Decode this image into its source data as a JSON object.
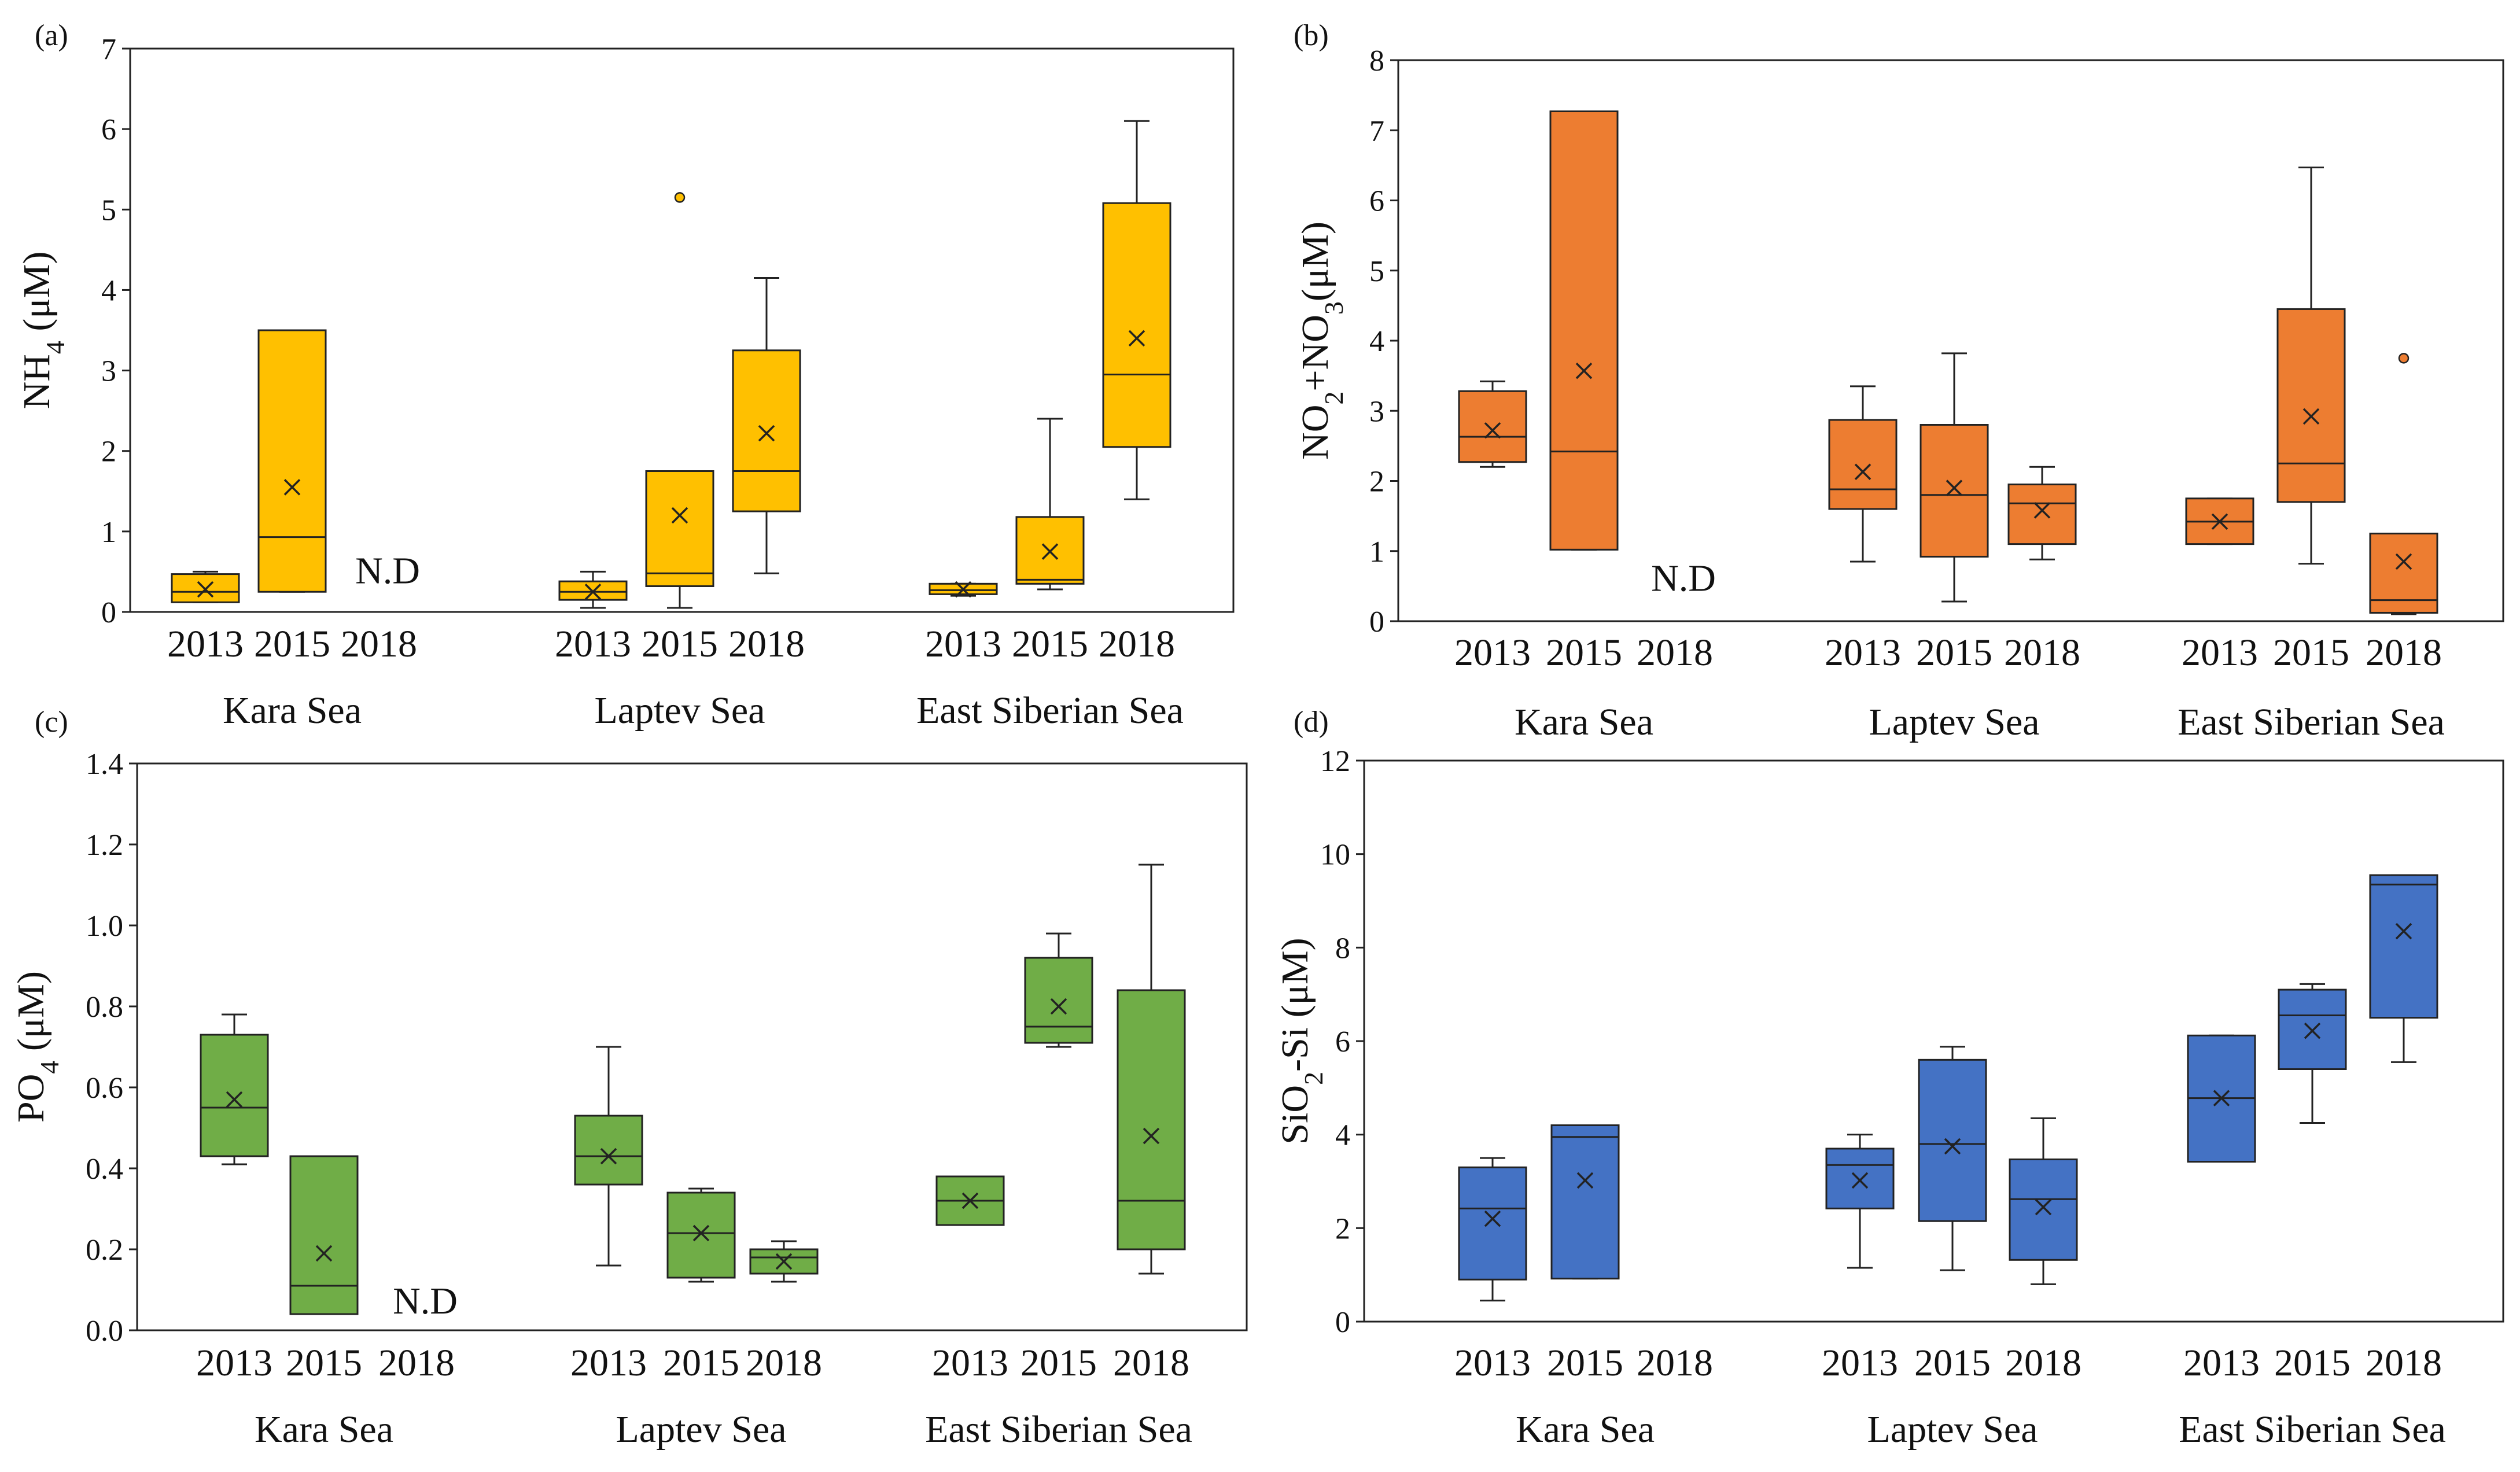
{
  "chart_data": [
    {
      "panel": "(a)",
      "type": "box",
      "ylabel": "NH₄ (μM)",
      "ylabel_main": "NH",
      "ylabel_sub": "4",
      "ylabel_rest": " (μM)",
      "ylim": [
        0,
        7
      ],
      "yticks": [
        "0",
        "1",
        "2",
        "3",
        "4",
        "5",
        "6",
        "7"
      ],
      "color": "#FFC000",
      "outlier_color": "#FFC000",
      "groups": [
        "Kara Sea",
        "Laptev Sea",
        "East Siberian Sea"
      ],
      "years": [
        "2013",
        "2015",
        "2018"
      ],
      "boxes": [
        {
          "group": 0,
          "year": 0,
          "min": 0.12,
          "q1": 0.12,
          "median": 0.25,
          "q3": 0.47,
          "max": 0.5,
          "mean": 0.28
        },
        {
          "group": 0,
          "year": 1,
          "min": 0.25,
          "q1": 0.25,
          "median": 0.93,
          "q3": 3.5,
          "max": 3.5,
          "mean": 1.55
        },
        {
          "group": 1,
          "year": 0,
          "min": 0.05,
          "q1": 0.15,
          "median": 0.25,
          "q3": 0.38,
          "max": 0.5,
          "mean": 0.25
        },
        {
          "group": 1,
          "year": 1,
          "min": 0.05,
          "q1": 0.32,
          "median": 0.48,
          "q3": 1.75,
          "max": 1.75,
          "mean": 1.2,
          "outliers": [
            5.15
          ]
        },
        {
          "group": 1,
          "year": 2,
          "min": 0.48,
          "q1": 1.25,
          "median": 1.75,
          "q3": 3.25,
          "max": 4.15,
          "mean": 2.22
        },
        {
          "group": 2,
          "year": 0,
          "min": 0.2,
          "q1": 0.22,
          "median": 0.27,
          "q3": 0.35,
          "max": 0.35,
          "mean": 0.28
        },
        {
          "group": 2,
          "year": 1,
          "min": 0.28,
          "q1": 0.35,
          "median": 0.4,
          "q3": 1.18,
          "max": 2.4,
          "mean": 0.75
        },
        {
          "group": 2,
          "year": 2,
          "min": 1.4,
          "q1": 2.05,
          "median": 2.95,
          "q3": 5.08,
          "max": 6.1,
          "mean": 3.4
        }
      ],
      "nd": {
        "group": 0,
        "year": 2,
        "text": "N.D",
        "y": 0.5
      }
    },
    {
      "panel": "(b)",
      "type": "box",
      "ylabel": "NO₂+NO₃(μM)",
      "ylabel_main": "NO",
      "ylabel_sub": "2",
      "ylabel_mid": "+NO",
      "ylabel_sub2": "3",
      "ylabel_rest": "(μM)",
      "ylim": [
        0,
        8
      ],
      "yticks": [
        "0",
        "1",
        "2",
        "3",
        "4",
        "5",
        "6",
        "7",
        "8"
      ],
      "color": "#ED7D31",
      "outlier_color": "#ED7D31",
      "groups": [
        "Kara Sea",
        "Laptev Sea",
        "East Siberian Sea"
      ],
      "years": [
        "2013",
        "2015",
        "2018"
      ],
      "boxes": [
        {
          "group": 0,
          "year": 0,
          "min": 2.2,
          "q1": 2.27,
          "median": 2.63,
          "q3": 3.28,
          "max": 3.42,
          "mean": 2.72
        },
        {
          "group": 0,
          "year": 1,
          "min": 1.02,
          "q1": 1.02,
          "median": 2.42,
          "q3": 7.27,
          "max": 7.27,
          "mean": 3.57
        },
        {
          "group": 1,
          "year": 0,
          "min": 0.85,
          "q1": 1.6,
          "median": 1.88,
          "q3": 2.87,
          "max": 3.35,
          "mean": 2.13
        },
        {
          "group": 1,
          "year": 1,
          "min": 0.28,
          "q1": 0.92,
          "median": 1.8,
          "q3": 2.8,
          "max": 3.82,
          "mean": 1.9
        },
        {
          "group": 1,
          "year": 2,
          "min": 0.88,
          "q1": 1.1,
          "median": 1.68,
          "q3": 1.95,
          "max": 2.2,
          "mean": 1.58
        },
        {
          "group": 2,
          "year": 0,
          "min": 1.1,
          "q1": 1.1,
          "median": 1.42,
          "q3": 1.75,
          "max": 1.75,
          "mean": 1.42
        },
        {
          "group": 2,
          "year": 1,
          "min": 0.82,
          "q1": 1.7,
          "median": 2.25,
          "q3": 4.45,
          "max": 6.47,
          "mean": 2.92
        },
        {
          "group": 2,
          "year": 2,
          "min": 0.1,
          "q1": 0.12,
          "median": 0.3,
          "q3": 1.25,
          "max": 1.25,
          "mean": 0.85,
          "outliers": [
            3.75
          ]
        }
      ],
      "nd": {
        "group": 0,
        "year": 2,
        "text": "N.D",
        "y": 0.6
      }
    },
    {
      "panel": "(c)",
      "type": "box",
      "ylabel": "PO₄ (μM)",
      "ylabel_main": "PO",
      "ylabel_sub": "4",
      "ylabel_rest": " (μM)",
      "ylim": [
        0,
        1.4
      ],
      "yticks": [
        "0.0",
        "0.2",
        "0.4",
        "0.6",
        "0.8",
        "1.0",
        "1.2",
        "1.4"
      ],
      "color": "#70AD47",
      "outlier_color": "#70AD47",
      "groups": [
        "Kara Sea",
        "Laptev Sea",
        "East Siberian Sea"
      ],
      "years": [
        "2013",
        "2015",
        "2018"
      ],
      "boxes": [
        {
          "group": 0,
          "year": 0,
          "min": 0.41,
          "q1": 0.43,
          "median": 0.55,
          "q3": 0.73,
          "max": 0.78,
          "mean": 0.57
        },
        {
          "group": 0,
          "year": 1,
          "min": 0.04,
          "q1": 0.04,
          "median": 0.11,
          "q3": 0.43,
          "max": 0.43,
          "mean": 0.19
        },
        {
          "group": 1,
          "year": 0,
          "min": 0.16,
          "q1": 0.36,
          "median": 0.43,
          "q3": 0.53,
          "max": 0.7,
          "mean": 0.43
        },
        {
          "group": 1,
          "year": 1,
          "min": 0.12,
          "q1": 0.13,
          "median": 0.24,
          "q3": 0.34,
          "max": 0.35,
          "mean": 0.24
        },
        {
          "group": 1,
          "year": 2,
          "min": 0.12,
          "q1": 0.14,
          "median": 0.18,
          "q3": 0.2,
          "max": 0.22,
          "mean": 0.17
        },
        {
          "group": 2,
          "year": 0,
          "min": 0.26,
          "q1": 0.26,
          "median": 0.32,
          "q3": 0.38,
          "max": 0.38,
          "mean": 0.32
        },
        {
          "group": 2,
          "year": 1,
          "min": 0.7,
          "q1": 0.71,
          "median": 0.75,
          "q3": 0.92,
          "max": 0.98,
          "mean": 0.8
        },
        {
          "group": 2,
          "year": 2,
          "min": 0.14,
          "q1": 0.2,
          "median": 0.32,
          "q3": 0.84,
          "max": 1.15,
          "mean": 0.48
        }
      ],
      "nd": {
        "group": 0,
        "year": 2,
        "text": "N.D",
        "y": 0.07
      }
    },
    {
      "panel": "(d)",
      "type": "box",
      "ylabel": "SiO₂-Si (μM)",
      "ylabel_main": "SiO",
      "ylabel_sub": "2",
      "ylabel_rest": "-Si (μM)",
      "ylim": [
        0,
        12
      ],
      "yticks": [
        "0",
        "2",
        "4",
        "6",
        "8",
        "10",
        "12"
      ],
      "color": "#4472C4",
      "outlier_color": "#4472C4",
      "groups": [
        "Kara Sea",
        "Laptev Sea",
        "East Siberian Sea"
      ],
      "years": [
        "2013",
        "2015",
        "2018"
      ],
      "boxes": [
        {
          "group": 0,
          "year": 0,
          "min": 0.45,
          "q1": 0.9,
          "median": 2.42,
          "q3": 3.3,
          "max": 3.5,
          "mean": 2.2
        },
        {
          "group": 0,
          "year": 1,
          "min": 0.92,
          "q1": 0.92,
          "median": 3.95,
          "q3": 4.2,
          "max": 4.2,
          "mean": 3.02
        },
        {
          "group": 1,
          "year": 0,
          "min": 1.15,
          "q1": 2.42,
          "median": 3.35,
          "q3": 3.7,
          "max": 4.0,
          "mean": 3.02
        },
        {
          "group": 1,
          "year": 1,
          "min": 1.1,
          "q1": 2.15,
          "median": 3.8,
          "q3": 5.6,
          "max": 5.88,
          "mean": 3.75
        },
        {
          "group": 1,
          "year": 2,
          "min": 0.8,
          "q1": 1.32,
          "median": 2.62,
          "q3": 3.47,
          "max": 4.35,
          "mean": 2.45
        },
        {
          "group": 2,
          "year": 0,
          "min": 3.42,
          "q1": 3.42,
          "median": 4.78,
          "q3": 6.12,
          "max": 6.12,
          "mean": 4.78
        },
        {
          "group": 2,
          "year": 1,
          "min": 4.25,
          "q1": 5.4,
          "median": 6.55,
          "q3": 7.1,
          "max": 7.22,
          "mean": 6.22
        },
        {
          "group": 2,
          "year": 2,
          "min": 5.55,
          "q1": 6.5,
          "median": 9.35,
          "q3": 9.55,
          "max": 9.55,
          "mean": 8.35
        }
      ]
    }
  ]
}
